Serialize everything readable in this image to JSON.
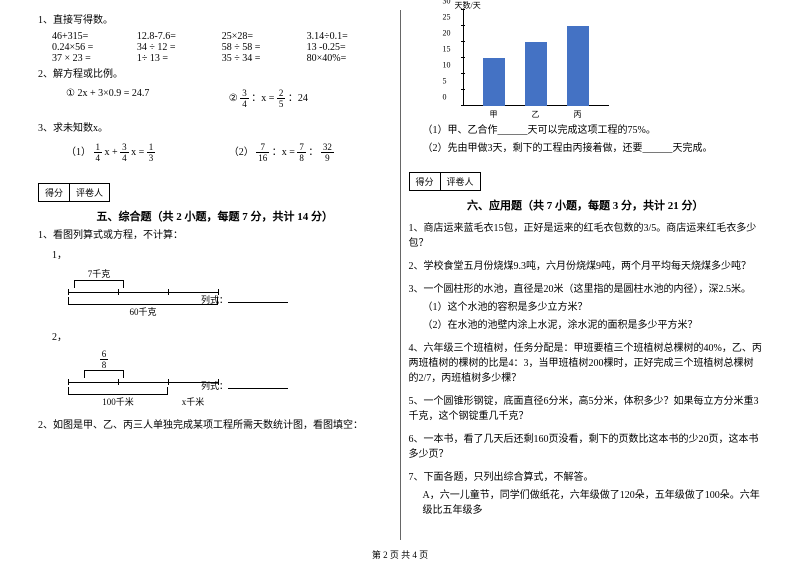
{
  "left": {
    "q1": {
      "title": "1、直接写得数。",
      "r1": [
        "46+315=",
        "12.8-7.6=",
        "25×28=",
        "3.14÷0.1="
      ],
      "r2": [
        "0.24×56 =",
        "34 ÷ 12 =",
        "58 ÷ 58 =",
        "13 -0.25="
      ],
      "r3": [
        "37 × 23 =",
        "1÷ 13 =",
        "35 ÷ 34 =",
        "80×40%="
      ]
    },
    "q2": {
      "title": "2、解方程或比例。",
      "eq1": "① 2x + 3×0.9 = 24.7",
      "eq2_pre": "②",
      "eq2_a": {
        "n": "3",
        "d": "4"
      },
      "eq2_mid": "：x =",
      "eq2_b": {
        "n": "2",
        "d": "5"
      },
      "eq2_post": "：24"
    },
    "q3": {
      "title": "3、求未知数x。",
      "e1_pre": "（1）",
      "e1_a": {
        "n": "1",
        "d": "4"
      },
      "e1_m": "x +",
      "e1_b": {
        "n": "3",
        "d": "4"
      },
      "e1_m2": "x =",
      "e1_c": {
        "n": "1",
        "d": "3"
      },
      "e2_pre": "（2）",
      "e2_a": {
        "n": "7",
        "d": "16"
      },
      "e2_m": "：x =",
      "e2_b": {
        "n": "7",
        "d": "8"
      },
      "e2_m2": "：",
      "e2_c": {
        "n": "32",
        "d": "9"
      }
    },
    "scorebox": {
      "a": "得分",
      "b": "评卷人"
    },
    "sec5": "五、综合题（共 2 小题，每题 7 分，共计 14 分）",
    "s5q1": "1、看图列算式或方程，不计算：",
    "d1_topnum": "1，",
    "d1_top": "7千克",
    "d1_bot": "60千克",
    "d1_list": "列式：",
    "d2_topnum": "2，",
    "d2_top": {
      "n": "6",
      "d": "8"
    },
    "d2_bot": "100千米",
    "d2_x": "x千米",
    "d2_list": "列式：",
    "s5q2": "2、如图是甲、乙、丙三人单独完成某项工程所需天数统计图，看图填空："
  },
  "right": {
    "chart": {
      "ytitle": "天数/天",
      "ymax": 30,
      "yticks": [
        0,
        5,
        10,
        15,
        20,
        25,
        30
      ],
      "bars": [
        {
          "label": "甲",
          "value": 15
        },
        {
          "label": "乙",
          "value": 20
        },
        {
          "label": "丙",
          "value": 25
        }
      ],
      "bar_color": "#4472c4"
    },
    "c1": "（1）甲、乙合作______天可以完成这项工程的75%。",
    "c2": "（2）先由甲做3天，剩下的工程由丙接着做，还要______天完成。",
    "scorebox": {
      "a": "得分",
      "b": "评卷人"
    },
    "sec6": "六、应用题（共 7 小题，每题 3 分，共计 21 分）",
    "q1": "1、商店运来蓝毛衣15包，正好是运来的红毛衣包数的3/5。商店运来红毛衣多少包？",
    "q2": "2、学校食堂五月份烧煤9.3吨，六月份烧煤9吨，两个月平均每天烧煤多少吨？",
    "q3a": "3、一个圆柱形的水池，直径是20米（这里指的是圆柱水池的内径），深2.5米。",
    "q3b": "（1）这个水池的容积是多少立方米？",
    "q3c": "（2）在水池的池壁内涂上水泥，涂水泥的面积是多少平方米？",
    "q4": "4、六年级三个班植树，任务分配是：甲班要植三个班植树总棵树的40%，乙、丙两班植树的棵树的比是4：3，当甲班植树200棵时，正好完成三个班植树总棵树的2/7，丙班植树多少棵？",
    "q5": "5、一个圆锥形钢锭，底面直径6分米，高5分米，体积多少？如果每立方分米重3千克，这个钢锭重几千克？",
    "q6": "6、一本书，看了几天后还剩160页没看，剩下的页数比这本书的少20页，这本书多少页？",
    "q7a": "7、下面各题，只列出综合算式，不解答。",
    "q7b": "A，六一儿童节，同学们做纸花，六年级做了120朵，五年级做了100朵。六年级比五年级多"
  },
  "footer": "第 2 页 共 4 页"
}
